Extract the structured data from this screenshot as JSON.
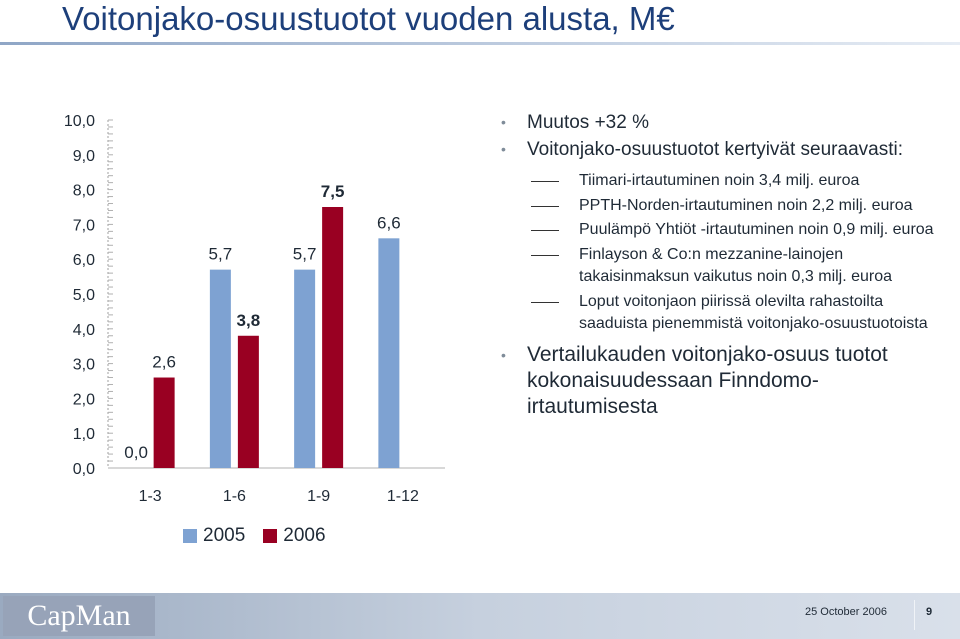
{
  "slide": {
    "title": "Voitonjako-osuustuotot vuoden alusta, M€"
  },
  "chart_data": {
    "type": "bar",
    "categories": [
      "1-3",
      "1-6",
      "1-9",
      "1-12"
    ],
    "series": [
      {
        "name": "2005",
        "values": [
          0.0,
          5.7,
          5.7,
          6.6
        ],
        "labels": [
          "0,0",
          "5,7",
          "5,7",
          "6,6"
        ],
        "color": "#7ea2d2"
      },
      {
        "name": "2006",
        "values": [
          2.6,
          3.8,
          7.5,
          null
        ],
        "labels": [
          "2,6",
          "3,8",
          "7,5",
          ""
        ],
        "color": "#990022"
      }
    ],
    "bold_labels": [
      "3,8",
      "7,5"
    ],
    "y_ticks": [
      "0,0",
      "1,0",
      "2,0",
      "3,0",
      "4,0",
      "5,0",
      "6,0",
      "7,0",
      "8,0",
      "9,0",
      "10,0"
    ],
    "ylim": [
      0,
      10
    ],
    "legend_position": "bottom-left"
  },
  "bullets": {
    "b1": "Muutos +32 %",
    "b2": "Voitonjako-osuustuotot kertyivät seuraavasti:",
    "sub": [
      "Tiimari-irtautuminen noin 3,4 milj. euroa",
      "PPTH-Norden-irtautuminen noin 2,2 milj. euroa",
      "Puulämpö Yhtiöt -irtautuminen noin 0,9 milj. euroa",
      "Finlayson & Co:n mezzanine-lainojen takaisinmaksun vaikutus noin 0,3 milj. euroa",
      "Loput voitonjaon piirissä olevilta rahastoilta saaduista pienemmistä voitonjako-osuustuotoista"
    ],
    "b3": "Vertailukauden voitonjako-osuus tuotot kokonaisuudessaan Finndomo-irtautumisesta"
  },
  "footer": {
    "logo": "CapMan",
    "date": "25 October 2006",
    "page": "9"
  }
}
